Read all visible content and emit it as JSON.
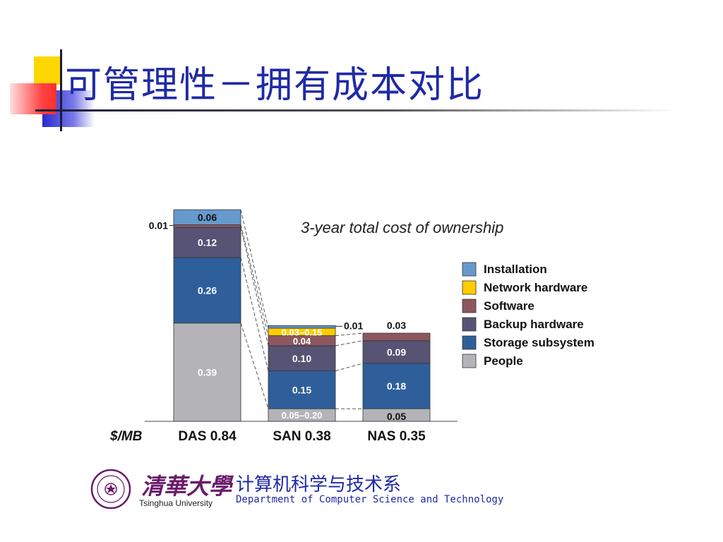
{
  "slide": {
    "title": "可管理性－拥有成本对比",
    "university_cn": "清華大學",
    "university_en": "Tsinghua University",
    "dept_cn": "计算机科学与技术系",
    "dept_en": "Department of Computer Science and Technology"
  },
  "chart_data": {
    "type": "bar",
    "stacked": true,
    "title": "3-year total cost of ownership",
    "ylabel": "$/MB",
    "categories": [
      "DAS 0.84",
      "SAN 0.38",
      "NAS 0.35"
    ],
    "series": [
      {
        "name": "People",
        "color": "#b4b4b8",
        "values": [
          0.39,
          0.05,
          0.05
        ],
        "labels": [
          "0.39",
          "0.05–0.20",
          "0.05"
        ]
      },
      {
        "name": "Storage subsystem",
        "color": "#2f5f9b",
        "values": [
          0.26,
          0.15,
          0.18
        ],
        "labels": [
          "0.26",
          "0.15",
          "0.18"
        ]
      },
      {
        "name": "Backup hardware",
        "color": "#565374",
        "values": [
          0.12,
          0.1,
          0.09
        ],
        "labels": [
          "0.12",
          "0.10",
          "0.09"
        ]
      },
      {
        "name": "Software",
        "color": "#8e5760",
        "values": [
          0.01,
          0.04,
          0.03
        ],
        "labels": [
          "0.01",
          "0.04",
          "0.03"
        ]
      },
      {
        "name": "Network hardware",
        "color": "#ffcc00",
        "values": [
          0,
          0.03,
          0
        ],
        "labels": [
          "",
          "0.03–0.15",
          ""
        ]
      },
      {
        "name": "Installation",
        "color": "#6699cc",
        "values": [
          0.06,
          0.01,
          0
        ],
        "labels": [
          "0.06",
          "0.01",
          ""
        ]
      }
    ],
    "legend_order": [
      "Installation",
      "Network hardware",
      "Software",
      "Backup hardware",
      "Storage subsystem",
      "People"
    ],
    "legend_position": "right",
    "grid": false
  }
}
